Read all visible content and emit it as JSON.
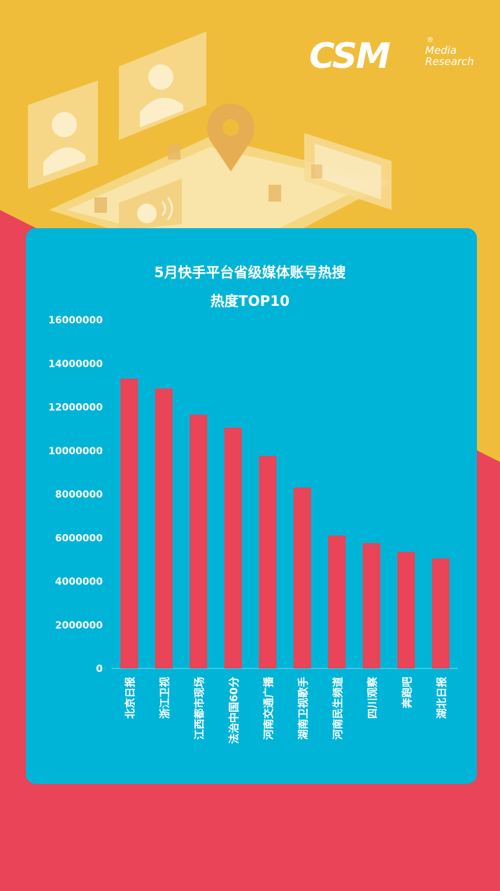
{
  "logo": {
    "main": "CSM",
    "registered": "®",
    "sub_line1": "Media",
    "sub_line2": "Research"
  },
  "colors": {
    "background_top": "#f0bd3a",
    "background_bottom": "#e94457",
    "card": "#00b4d8",
    "bar": "#e94457",
    "text": "#ffffff"
  },
  "chart_data": {
    "type": "bar",
    "title": "5月快手平台省级媒体账号热搜",
    "subtitle": "热度TOP10",
    "categories": [
      "北京日报",
      "浙江卫视",
      "江西都市现场",
      "法治中国60分",
      "河南交通广播",
      "湖南卫视歌手",
      "河南民生频道",
      "四川观察",
      "奔跑吧",
      "湖北日报"
    ],
    "values": [
      13300000,
      12850000,
      11650000,
      11050000,
      9750000,
      8300000,
      6100000,
      5750000,
      5350000,
      5050000
    ],
    "ylim": [
      0,
      16000000
    ],
    "yticks": [
      0,
      2000000,
      4000000,
      6000000,
      8000000,
      10000000,
      12000000,
      14000000,
      16000000
    ],
    "ytick_labels": [
      "0",
      "2000000",
      "4000000",
      "6000000",
      "8000000",
      "10000000",
      "12000000",
      "14000000",
      "16000000"
    ],
    "xlabel": "",
    "ylabel": "",
    "grid": false,
    "legend": "none"
  }
}
